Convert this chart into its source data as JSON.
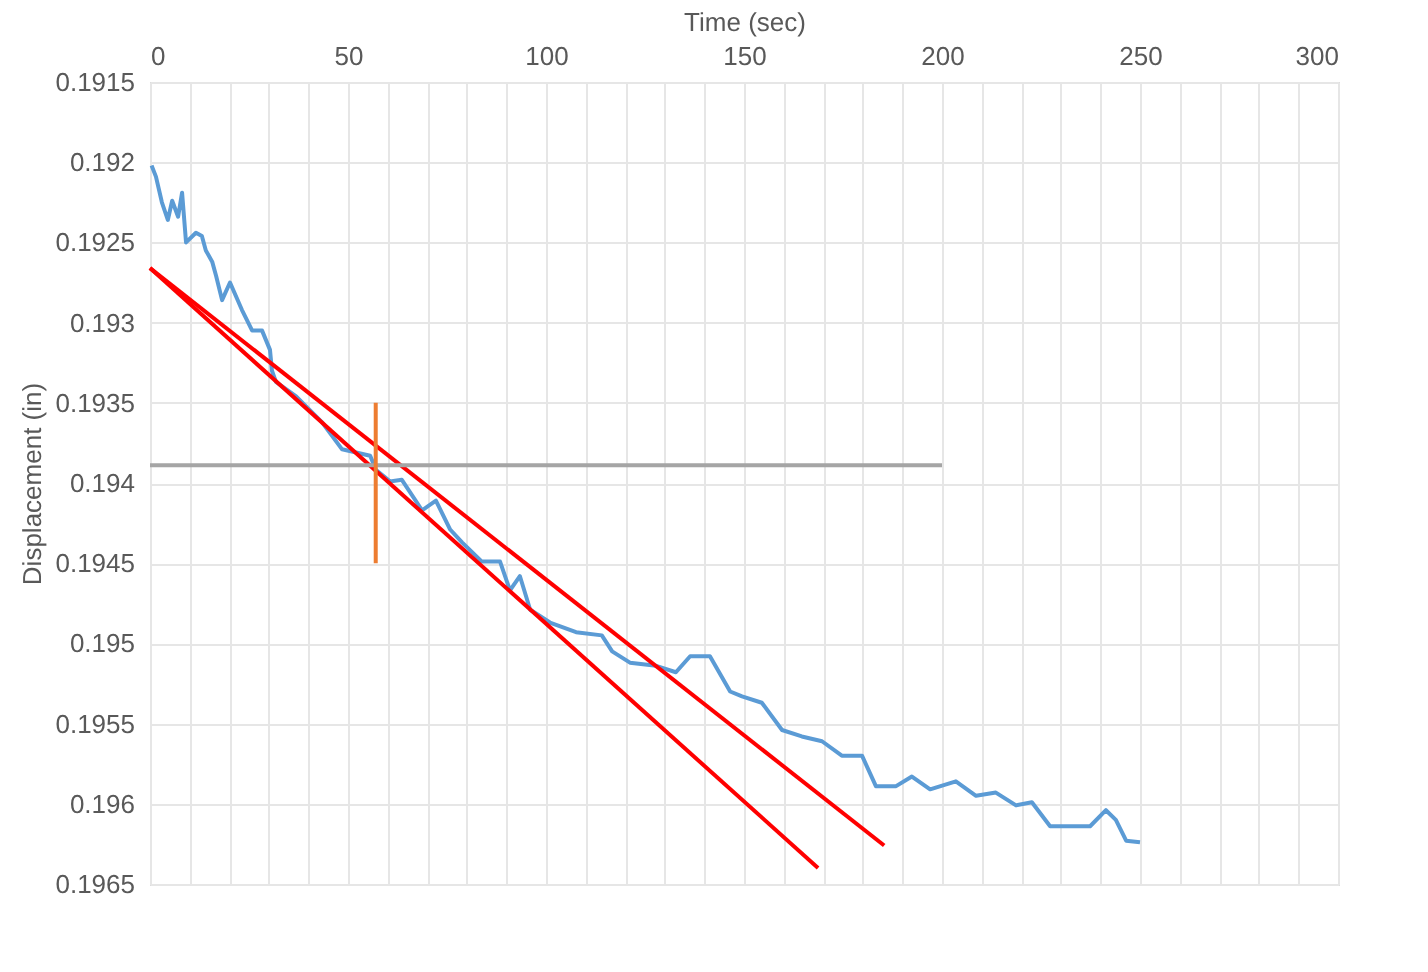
{
  "chart_data": {
    "type": "line",
    "xlabel": "Time (sec)",
    "ylabel": "Displacement (in)",
    "xlim": [
      0,
      300
    ],
    "ylim": [
      0.1965,
      0.1915
    ],
    "xticks": [
      0,
      {
        "value": 10,
        "label": null
      },
      {
        "value": 20,
        "label": null
      },
      {
        "value": 30,
        "label": null
      },
      {
        "value": 40,
        "label": null
      },
      50,
      {
        "value": 60,
        "label": null
      },
      {
        "value": 70,
        "label": null
      },
      {
        "value": 80,
        "label": null
      },
      {
        "value": 90,
        "label": null
      },
      100,
      {
        "value": 110,
        "label": null
      },
      {
        "value": 120,
        "label": null
      },
      {
        "value": 130,
        "label": null
      },
      {
        "value": 140,
        "label": null
      },
      150,
      {
        "value": 160,
        "label": null
      },
      {
        "value": 170,
        "label": null
      },
      {
        "value": 180,
        "label": null
      },
      {
        "value": 190,
        "label": null
      },
      200,
      {
        "value": 210,
        "label": null
      },
      {
        "value": 220,
        "label": null
      },
      {
        "value": 230,
        "label": null
      },
      {
        "value": 240,
        "label": null
      },
      250,
      {
        "value": 260,
        "label": null
      },
      {
        "value": 270,
        "label": null
      },
      {
        "value": 280,
        "label": null
      },
      {
        "value": 290,
        "label": null
      },
      300
    ],
    "yticks": [
      0.1915,
      0.192,
      0.1925,
      0.193,
      0.1935,
      0.194,
      0.1945,
      0.195,
      0.1955,
      0.196,
      0.1965
    ],
    "grid": true,
    "legend": false,
    "marker": "none",
    "line_style": "solid",
    "series": [
      {
        "color": "#5b9bd5",
        "x": [
          0.4,
          1.5,
          3.0,
          4.5,
          5.6,
          7.1,
          8.1,
          9.1,
          11.6,
          13.1,
          14.1,
          15.7,
          16.7,
          18.2,
          20.2,
          23.2,
          25.8,
          28.3,
          30.3,
          30.8,
          31.8,
          36.9,
          43.4,
          48.5,
          55.6,
          57.1,
          60.6,
          63.6,
          68.7,
          72.2,
          75.8,
          78.8,
          83.8,
          88.4,
          90.9,
          93.4,
          96.0,
          101.0,
          107.6,
          114.1,
          116.7,
          121.2,
          127.8,
          132.8,
          136.4,
          141.4,
          146.5,
          149.5,
          154.5,
          159.6,
          164.6,
          169.7,
          174.7,
          179.8,
          183.3,
          188.4,
          192.4,
          197.0,
          203.5,
          208.6,
          213.6,
          218.7,
          222.7,
          227.3,
          232.3,
          237.4,
          241.4,
          243.9,
          246.5,
          250.0
        ],
        "values": [
          0.19202,
          0.19209,
          0.19225,
          0.19236,
          0.19224,
          0.19234,
          0.19219,
          0.1925,
          0.19244,
          0.19246,
          0.19255,
          0.19262,
          0.19271,
          0.19286,
          0.19275,
          0.19292,
          0.19305,
          0.19305,
          0.19317,
          0.1933,
          0.19337,
          0.19346,
          0.19362,
          0.19379,
          0.19383,
          0.19392,
          0.19399,
          0.19398,
          0.19417,
          0.19411,
          0.19429,
          0.19437,
          0.19449,
          0.19449,
          0.19467,
          0.19458,
          0.19479,
          0.19487,
          0.19493,
          0.19495,
          0.19505,
          0.19512,
          0.19514,
          0.19518,
          0.19508,
          0.19508,
          0.1953,
          0.19533,
          0.19537,
          0.19554,
          0.19558,
          0.19561,
          0.1957,
          0.1957,
          0.19589,
          0.19589,
          0.19583,
          0.19591,
          0.19586,
          0.19595,
          0.19593,
          0.19601,
          0.19599,
          0.19614,
          0.19614,
          0.19614,
          0.19604,
          0.1961,
          0.19623,
          0.19624
        ]
      },
      {
        "color": "#ff0000",
        "x": [
          0,
          168.7
        ],
        "values": [
          0.19266,
          0.1964
        ]
      },
      {
        "color": "#ff0000",
        "x": [
          0,
          185.4
        ],
        "values": [
          0.19266,
          0.19626
        ]
      },
      {
        "color": "#a5a5a5",
        "x": [
          0,
          200
        ],
        "values": [
          0.19389,
          0.19389
        ]
      },
      {
        "color": "#ed7d31",
        "x": [
          57,
          57
        ],
        "values": [
          0.1935,
          0.1945
        ]
      }
    ]
  }
}
